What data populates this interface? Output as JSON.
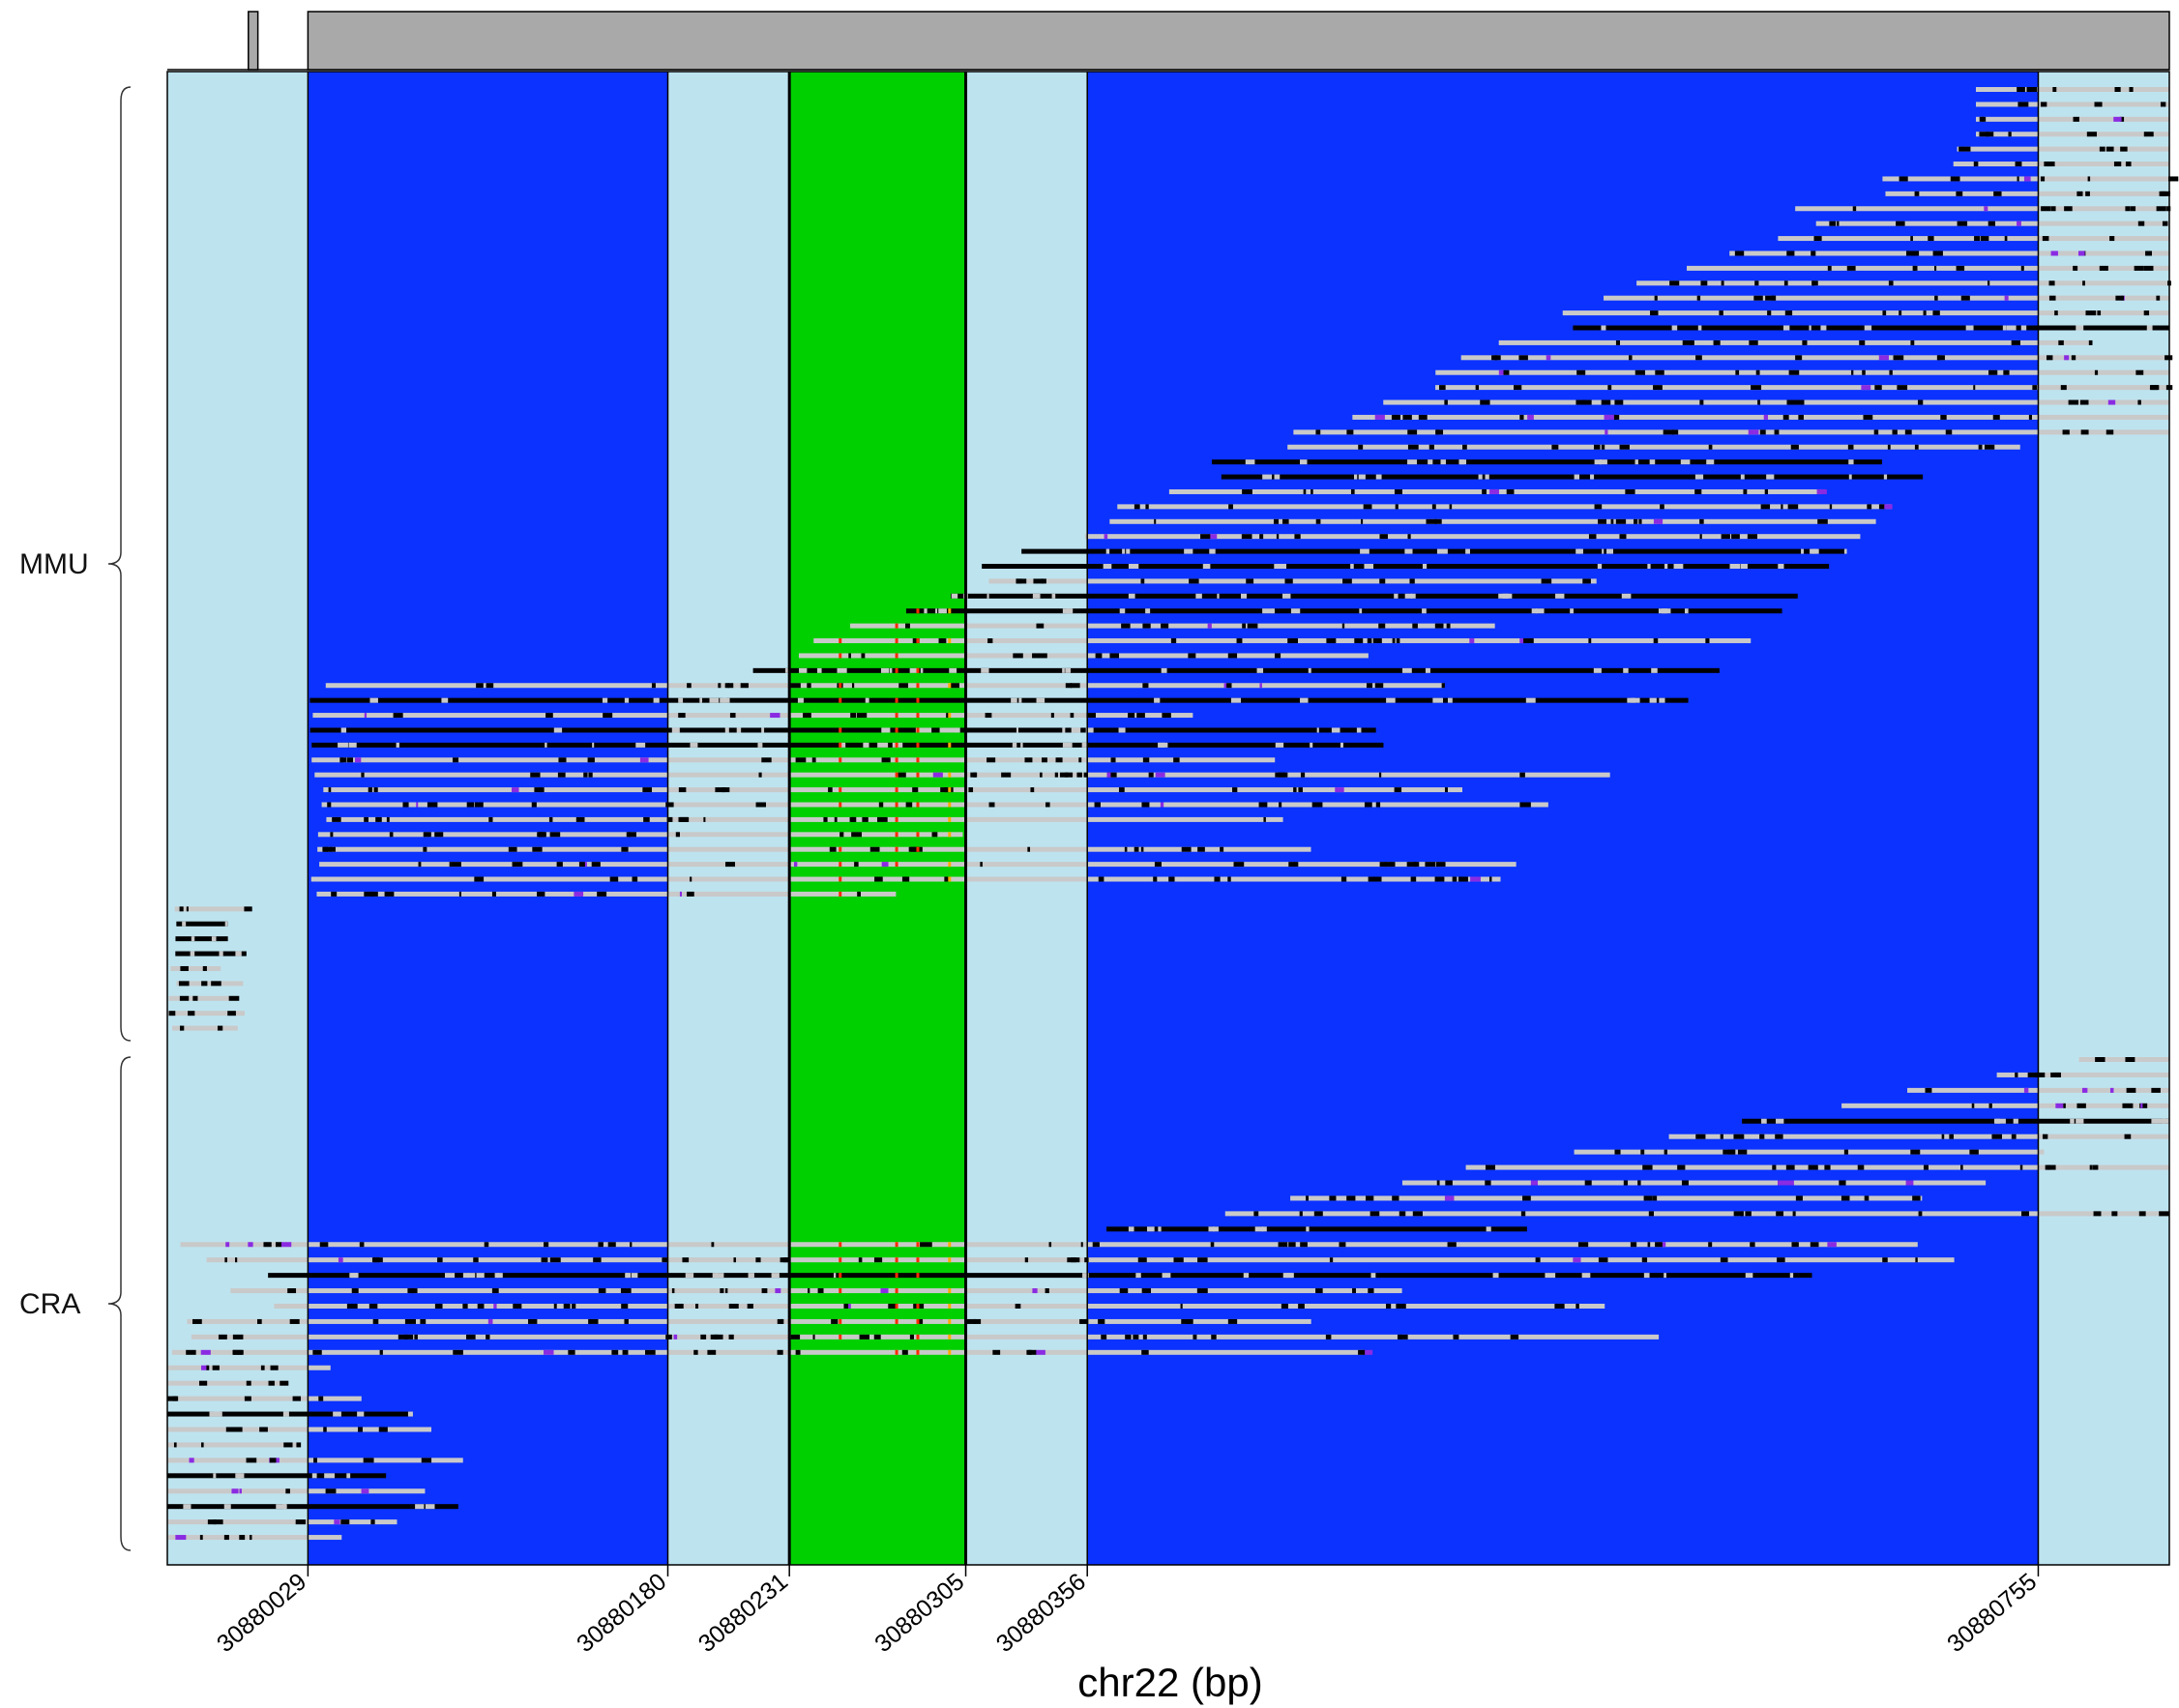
{
  "chart_data": {
    "type": "read-alignment-pileup",
    "xlabel": "chr22 (bp)",
    "xlim": [
      30879970,
      30880810
    ],
    "boundaries": [
      30880029,
      30880180,
      30880231,
      30880305,
      30880356,
      30880755
    ],
    "tick_labels": [
      "30880029",
      "30880180",
      "30880231",
      "30880305",
      "30880356",
      "30880755"
    ],
    "regions": [
      {
        "start": 30879970,
        "end": 30880029,
        "kind": "intron"
      },
      {
        "start": 30880029,
        "end": 30880180,
        "kind": "exon"
      },
      {
        "start": 30880180,
        "end": 30880231,
        "kind": "intron"
      },
      {
        "start": 30880231,
        "end": 30880305,
        "kind": "target-exon"
      },
      {
        "start": 30880305,
        "end": 30880356,
        "kind": "intron"
      },
      {
        "start": 30880356,
        "end": 30880755,
        "kind": "exon"
      },
      {
        "start": 30880755,
        "end": 30880810,
        "kind": "intron"
      }
    ],
    "track_boxes": [
      {
        "start": 30880004,
        "end": 30880008
      },
      {
        "start": 30880029,
        "end": 30880810
      }
    ],
    "groups": [
      {
        "label": "MMU",
        "reads": 64
      },
      {
        "label": "CRA",
        "reads": 32
      }
    ],
    "colors": {
      "exon": "#0b32ff",
      "intron": "#bde3ef",
      "target_exon": "#00d000",
      "track_box": "#a9a9a9",
      "read": "#c9c9c9",
      "mismatch": "#000000",
      "variant_purple": "#8a2be2",
      "variant_red": "#ff2a00",
      "variant_orange": "#ffaa00"
    }
  }
}
